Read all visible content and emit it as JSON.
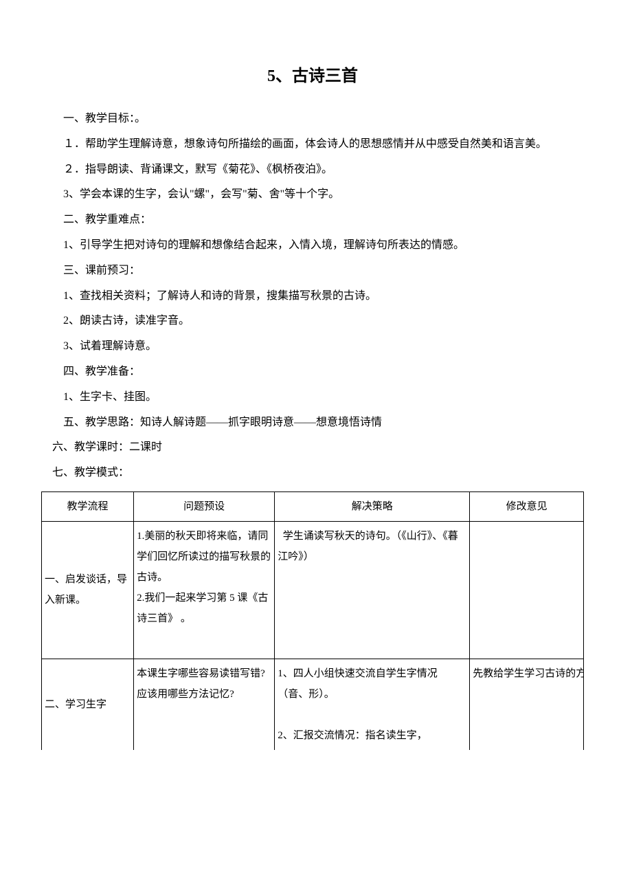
{
  "title": "5、古诗三首",
  "sections": [
    "一、教学目标：。",
    "１．帮助学生理解诗意，想象诗句所描绘的画面，体会诗人的思想感情并从中感受自然美和语言美。",
    "２．指导朗读、背诵课文，默写《菊花》、《枫桥夜泊》。",
    "3、学会本课的生字，会认\"螺\"，会写\"菊、舍\"等十个字。",
    "二、教学重难点：",
    "1、引导学生把对诗句的理解和想像结合起来，入情入境，理解诗句所表达的情感。",
    "三、课前预习：",
    "1、查找相关资料；了解诗人和诗的背景，搜集描写秋景的古诗。",
    "2、朗读古诗，读准字音。",
    "3、试着理解诗意。",
    "四、教学准备：",
    "1、生字卡、挂图。",
    "五、教学思路：知诗人解诗题——抓字眼明诗意——想意境悟诗情",
    "六、教学课时：二课时",
    "七、教学模式："
  ],
  "wrap_index_1": 1,
  "wrap_index_5": 5,
  "table": {
    "headers": [
      "教学流程",
      "问题预设",
      "解决策略",
      "修改意见"
    ],
    "rows": [
      {
        "c1": "一、启发谈话，导入新课。",
        "c2": "1.美丽的秋天即将来临，请同学们回忆所读过的描写秋景的古诗。\n2.我们一起来学习第 5 课《古诗三首》 。",
        "c3": "  学生诵读写秋天的诗句。（《山行》、《暮江吟》）",
        "c4": ""
      },
      {
        "c1": "二、学习生字",
        "c2": "本课生字哪些容易读错写错?应该用哪些方法记忆?",
        "c3": "1、四人小组快速交流自学生字情况（音、形）。\n\n2、汇报交流情况：指名读生字，",
        "c4": "先教给学生学习古诗的方法：一、知诗人，解诗题。二、熟诗句，反复读。三、抓字眼，解诗句。"
      }
    ]
  },
  "colors": {
    "text": "#000000",
    "background": "#ffffff",
    "border": "#000000"
  },
  "typography": {
    "title_fontsize": 24,
    "body_fontsize": 16,
    "table_fontsize": 15,
    "line_height": 2.3,
    "font_family": "SimSun"
  }
}
